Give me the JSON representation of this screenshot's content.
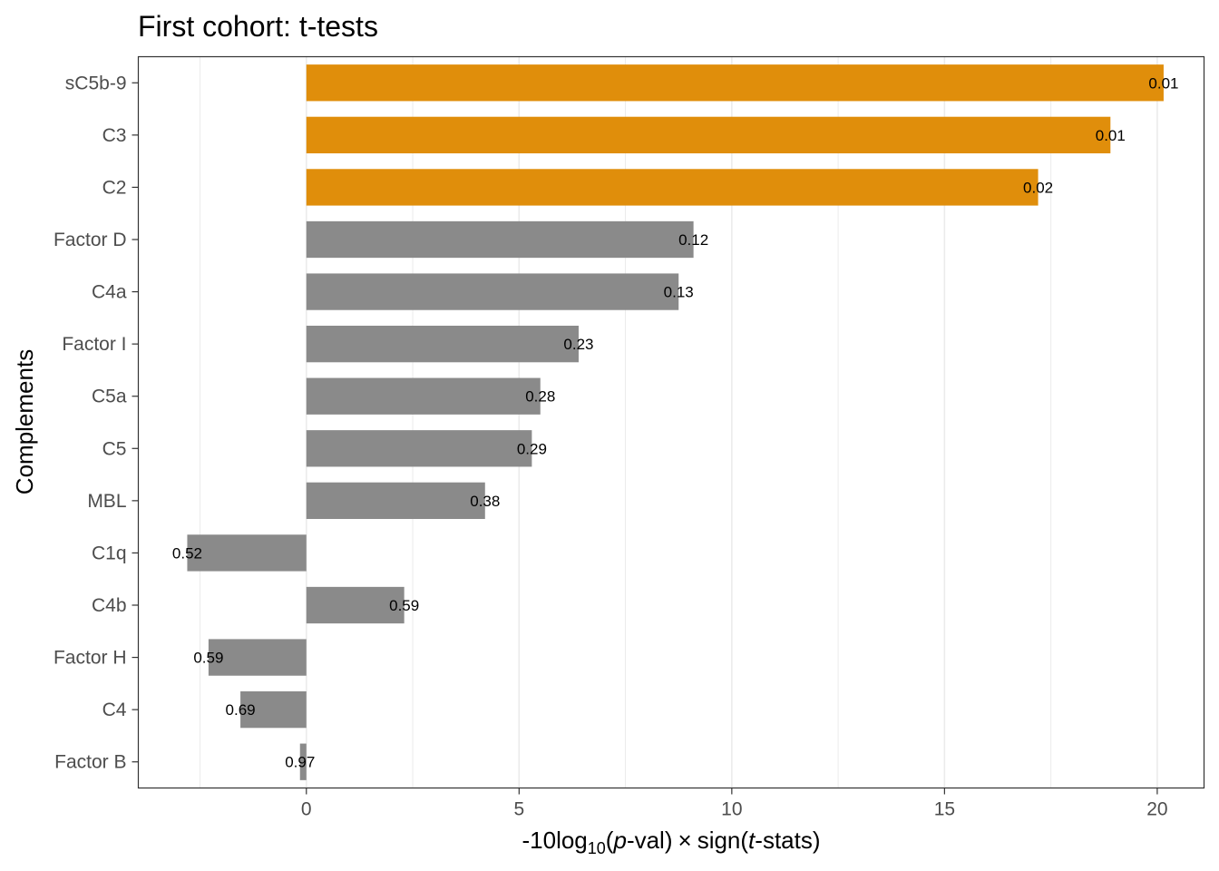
{
  "chart_data": {
    "type": "bar",
    "orientation": "horizontal",
    "title": "First cohort: t-tests",
    "xlabel": {
      "prefix": "-10log",
      "subscript": "10",
      "open": "(",
      "italic1": "p",
      "mid": "-val)",
      "times": "×",
      "sign": "sign(",
      "italic2": "t",
      "suffix": "-stats)"
    },
    "ylabel": "Complements",
    "xlim": [
      -3.95,
      21.1
    ],
    "xticks": [
      0,
      5,
      10,
      15,
      20
    ],
    "xtick_labels": [
      "0",
      "5",
      "10",
      "15",
      "20"
    ],
    "minor_gridlines": [
      -2.5,
      2.5,
      7.5,
      12.5,
      17.5
    ],
    "grid": true,
    "categories": [
      "sC5b-9",
      "C3",
      "C2",
      "Factor D",
      "C4a",
      "Factor I",
      "C5a",
      "C5",
      "MBL",
      "C1q",
      "C4b",
      "Factor H",
      "C4",
      "Factor B"
    ],
    "values": [
      20.15,
      18.9,
      17.2,
      9.1,
      8.75,
      6.4,
      5.5,
      5.3,
      4.2,
      -2.8,
      2.3,
      -2.3,
      -1.55,
      -0.15
    ],
    "p_labels": [
      "0.01",
      "0.01",
      "0.02",
      "0.12",
      "0.13",
      "0.23",
      "0.28",
      "0.29",
      "0.38",
      "0.52",
      "0.59",
      "0.59",
      "0.69",
      "0.97"
    ],
    "highlight": [
      true,
      true,
      true,
      false,
      false,
      false,
      false,
      false,
      false,
      false,
      false,
      false,
      false,
      false
    ],
    "colors": {
      "highlight": "#E08E0B",
      "default": "#8A8A8A",
      "grid": "#EBEBEB",
      "axis": "#333333"
    }
  }
}
